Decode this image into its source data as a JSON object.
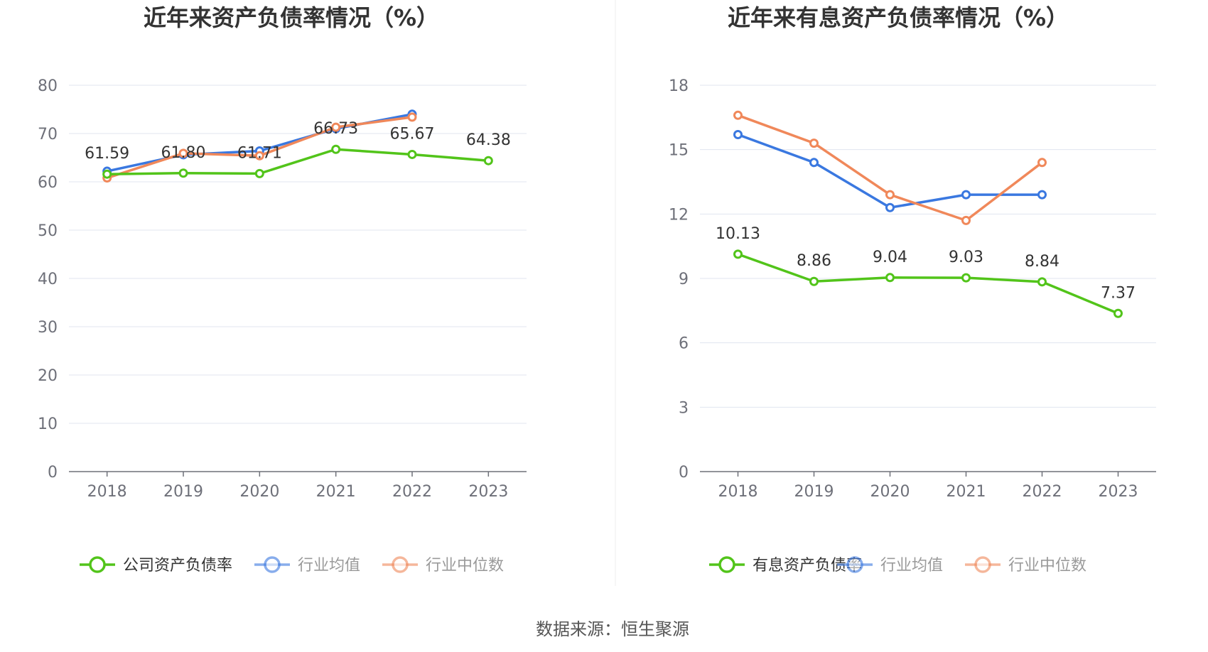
{
  "source_label": "数据来源：恒生聚源",
  "colors": {
    "company": "#52c41a",
    "industry_avg": "#3a78e0",
    "industry_median": "#f0885a",
    "grid": "#e0e4ef",
    "axis": "#6e7079"
  },
  "chart_data": [
    {
      "type": "line",
      "title": "近年来资产负债率情况（%）",
      "x": [
        "2018",
        "2019",
        "2020",
        "2021",
        "2022",
        "2023"
      ],
      "ylim": [
        0,
        80
      ],
      "yticks": [
        0,
        10,
        20,
        30,
        40,
        50,
        60,
        70,
        80
      ],
      "grid": true,
      "legend_position": "bottom",
      "series": [
        {
          "name": "公司资产负债率",
          "color_key": "company",
          "values": [
            61.59,
            61.8,
            61.71,
            66.73,
            65.67,
            64.38
          ],
          "labels": [
            "61.59",
            "61.80",
            "61.71",
            "66.73",
            "65.67",
            "64.38"
          ]
        },
        {
          "name": "行业均值",
          "color_key": "industry_avg",
          "values": [
            62.2,
            65.6,
            66.4,
            71.0,
            74.0,
            null
          ]
        },
        {
          "name": "行业中位数",
          "color_key": "industry_median",
          "values": [
            60.8,
            65.9,
            65.4,
            71.3,
            73.4,
            null
          ]
        }
      ]
    },
    {
      "type": "line",
      "title": "近年来有息资产负债率情况（%）",
      "x": [
        "2018",
        "2019",
        "2020",
        "2021",
        "2022",
        "2023"
      ],
      "ylim": [
        0,
        18
      ],
      "yticks": [
        0,
        3,
        6,
        9,
        12,
        15,
        18
      ],
      "grid": true,
      "legend_position": "bottom",
      "series": [
        {
          "name": "有息资产负债率",
          "color_key": "company",
          "values": [
            10.13,
            8.86,
            9.04,
            9.03,
            8.84,
            7.37
          ],
          "labels": [
            "10.13",
            "8.86",
            "9.04",
            "9.03",
            "8.84",
            "7.37"
          ]
        },
        {
          "name": "行业均值",
          "color_key": "industry_avg",
          "values": [
            15.7,
            14.4,
            12.3,
            12.9,
            12.9,
            null
          ]
        },
        {
          "name": "行业中位数",
          "color_key": "industry_median",
          "values": [
            16.6,
            15.3,
            12.9,
            11.7,
            14.4,
            null
          ]
        }
      ]
    }
  ]
}
